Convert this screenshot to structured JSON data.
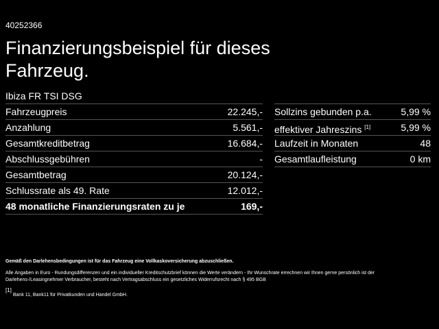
{
  "header": {
    "id": "40252366",
    "title": "Finanzierungsbeispiel für dieses Fahrzeug.",
    "model": "Ibiza FR TSI DSG"
  },
  "left_table": {
    "rows": [
      {
        "label": "Fahrzeugpreis",
        "value": "22.245,-"
      },
      {
        "label": "Anzahlung",
        "value": "5.561,-"
      },
      {
        "label": "Gesamtkreditbetrag",
        "value": "16.684,-"
      },
      {
        "label": "Abschlussgebühren",
        "value": "-"
      },
      {
        "label": "Gesamtbetrag",
        "value": "20.124,-"
      },
      {
        "label": "Schlussrate als 49. Rate",
        "value": "12.012,-"
      },
      {
        "label": "48 monatliche Finanzierungsraten zu je",
        "value": "169,-"
      }
    ]
  },
  "right_table": {
    "rows": [
      {
        "label": "Sollzins gebunden p.a.",
        "value": "5,99 %"
      },
      {
        "label": "effektiver Jahreszins",
        "note": "[1]",
        "value": "5,99 %"
      },
      {
        "label": "Laufzeit in Monaten",
        "value": "48"
      },
      {
        "label": "Gesamtlaufleistung",
        "value": "0 km"
      }
    ]
  },
  "footer": {
    "notice": "Gemäß den Darlehensbedingungen ist für das Fahrzeug eine Vollkaskoversicherung abzuschließen.",
    "disclaimer": "Alle Angaben in Euro - Rundungsdifferenzen und ein individueller Kreditschutzbrief können die Werte verändern - Ihr Wunschrate errechnen wir Ihnen gerne persönlich ist der Darlehens-/Leasingnehmer Verbraucher, besteht nach Vertragsabschluss ein gesetzliches Widerrufsrecht nach § 495 BGB",
    "footnote_mark": "[1]",
    "footnote": "Bank 11, Bank11 für Privatkunden und Handel GmbH."
  }
}
